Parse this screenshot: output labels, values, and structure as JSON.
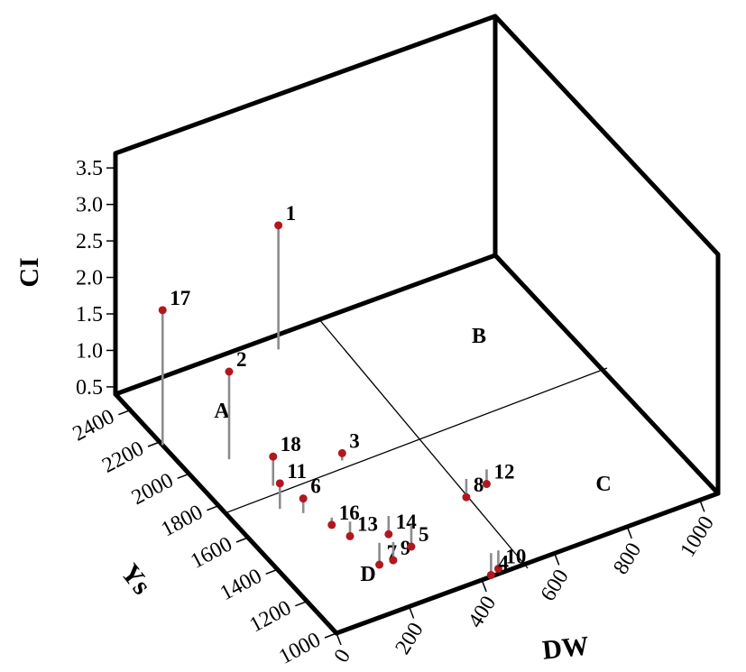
{
  "chart_data": {
    "type": "scatter",
    "projection": "3d",
    "x_axis": {
      "label": "DW",
      "ticks": [
        "0",
        "200",
        "400",
        "600",
        "800",
        "1000"
      ]
    },
    "y_axis": {
      "label": "Ys",
      "ticks": [
        "1000",
        "1200",
        "1400",
        "1600",
        "1800",
        "2000",
        "2200",
        "2400"
      ]
    },
    "z_axis": {
      "label": "CI",
      "ticks": [
        "0.5",
        "1.0",
        "1.5",
        "2.0",
        "2.5",
        "3.0",
        "3.5"
      ]
    },
    "xlim": [
      0,
      1050
    ],
    "ylim": [
      1000,
      2500
    ],
    "zlim": [
      0.4,
      3.7
    ],
    "regions": [
      "A",
      "B",
      "C",
      "D"
    ],
    "points": [
      {
        "label": "17",
        "dw": 0,
        "ys": 2180,
        "ci": 2.25
      },
      {
        "label": "1",
        "dw": 420,
        "ys": 2430,
        "ci": 2.1
      },
      {
        "label": "2",
        "dw": 110,
        "ys": 2000,
        "ci": 1.6
      },
      {
        "label": "18",
        "dw": 150,
        "ys": 1800,
        "ci": 0.8
      },
      {
        "label": "11",
        "dw": 120,
        "ys": 1680,
        "ci": 0.75
      },
      {
        "label": "6",
        "dw": 160,
        "ys": 1620,
        "ci": 0.6
      },
      {
        "label": "3",
        "dw": 340,
        "ys": 1800,
        "ci": 0.5
      },
      {
        "label": "16",
        "dw": 210,
        "ys": 1550,
        "ci": 0.3
      },
      {
        "label": "13",
        "dw": 240,
        "ys": 1500,
        "ci": 0.2
      },
      {
        "label": "14",
        "dw": 330,
        "ys": 1460,
        "ci": 0.15
      },
      {
        "label": "7",
        "dw": 260,
        "ys": 1350,
        "ci": 0.1
      },
      {
        "label": "9",
        "dw": 290,
        "ys": 1330,
        "ci": 0.15
      },
      {
        "label": "5",
        "dw": 360,
        "ys": 1380,
        "ci": 0.1
      },
      {
        "label": "8",
        "dw": 560,
        "ys": 1500,
        "ci": 0.15
      },
      {
        "label": "12",
        "dw": 620,
        "ys": 1510,
        "ci": 0.2
      },
      {
        "label": "10",
        "dw": 490,
        "ys": 1110,
        "ci": 0.15
      },
      {
        "label": "4",
        "dw": 470,
        "ys": 1110,
        "ci": 0.1
      }
    ]
  }
}
